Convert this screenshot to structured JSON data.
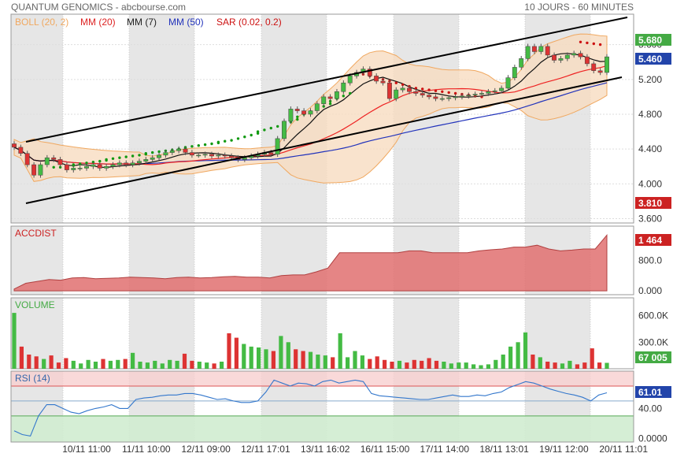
{
  "header": {
    "title": "QUANTUM GENOMICS - abcbourse.com",
    "period": "10 JOURS - 60 MINUTES"
  },
  "legend": {
    "boll": "BOLL (20, 2)",
    "mm20": "MM (20)",
    "mm7": "MM (7)",
    "mm50": "MM (50)",
    "sar": "SAR (0.02, 0.2)"
  },
  "colors": {
    "up": "#44bb44",
    "down": "#dd3333",
    "boll_fill": "#f7dcc0",
    "boll_line": "#f0a860",
    "mm20": "#ee2222",
    "mm7": "#111111",
    "mm50": "#2233bb",
    "sar_up": "#119911",
    "sar_down": "#cc1111",
    "accdist": "#e07070",
    "rsi": "#3377cc",
    "shade": "#e6e6e6"
  },
  "chart_data": [
    {
      "type": "candlestick",
      "name": "price",
      "ylim": [
        3.55,
        5.95
      ],
      "yticks": [
        "3.600",
        "4.000",
        "4.400",
        "4.800",
        "5.200",
        "5.600"
      ],
      "last_high_label": "5.680",
      "last_close_label": "5.460",
      "last_low_label": "3.810",
      "close": [
        4.42,
        4.35,
        4.22,
        4.1,
        4.22,
        4.3,
        4.28,
        4.22,
        4.16,
        4.18,
        4.18,
        4.2,
        4.22,
        4.18,
        4.2,
        4.22,
        4.24,
        4.22,
        4.24,
        4.26,
        4.28,
        4.3,
        4.33,
        4.36,
        4.38,
        4.4,
        4.36,
        4.33,
        4.33,
        4.34,
        4.32,
        4.33,
        4.32,
        4.3,
        4.28,
        4.3,
        4.32,
        4.34,
        4.36,
        4.34,
        4.52,
        4.72,
        4.86,
        4.84,
        4.8,
        4.84,
        4.92,
        5.0,
        4.98,
        5.06,
        5.16,
        5.24,
        5.28,
        5.32,
        5.24,
        5.18,
        5.16,
        4.98,
        5.08,
        5.1,
        5.06,
        5.04,
        5.02,
        5.0,
        4.98,
        4.98,
        4.99,
        5.0,
        5.01,
        5.02,
        5.03,
        5.04,
        5.06,
        5.07,
        5.1,
        5.22,
        5.34,
        5.44,
        5.58,
        5.52,
        5.58,
        5.48,
        5.42,
        5.44,
        5.48,
        5.5,
        5.46,
        5.38,
        5.3,
        5.28,
        5.46
      ],
      "sar_up": [
        4.19,
        4.19,
        4.2,
        4.21,
        4.22,
        4.23,
        4.24,
        4.25,
        4.26,
        4.27,
        4.28,
        4.29,
        4.3,
        4.31,
        4.32,
        4.33,
        4.34,
        4.35,
        4.36,
        4.37,
        4.38,
        4.39,
        4.4,
        4.41,
        4.42,
        4.43,
        4.44,
        4.45,
        4.46,
        4.47,
        4.48,
        4.49,
        4.5,
        4.52,
        4.54,
        4.56,
        4.58,
        4.6,
        4.62,
        4.64,
        4.66,
        4.68,
        4.71,
        4.74,
        4.77,
        4.8,
        4.83,
        4.86,
        4.89,
        4.92,
        4.95,
        4.98,
        5.01,
        5.04
      ],
      "sar_down": [
        5.27,
        5.26,
        5.24,
        5.22,
        5.2,
        5.18,
        5.16,
        5.14,
        5.12,
        5.1,
        5.09,
        5.08,
        5.07,
        5.06,
        5.05,
        5.04,
        5.03,
        5.02,
        5.01,
        5.0,
        5.63,
        5.62,
        5.61,
        5.6
      ]
    },
    {
      "type": "area",
      "name": "ACCDIST",
      "ylim": [
        -100,
        1700
      ],
      "yticks": [
        "800.0",
        "0.000"
      ],
      "last_label": "1 464",
      "values": [
        50,
        200,
        250,
        300,
        280,
        340,
        350,
        320,
        330,
        340,
        360,
        350,
        340,
        320,
        350,
        360,
        340,
        350,
        370,
        380,
        360,
        360,
        340,
        400,
        420,
        420,
        500,
        600,
        1000,
        1000,
        1000,
        1000,
        1000,
        1000,
        1050,
        1050,
        1000,
        1000,
        1000,
        1000,
        1050,
        1080,
        1100,
        1150,
        1150,
        1200,
        1100,
        1050,
        1070,
        1100,
        1100,
        1464
      ]
    },
    {
      "type": "bar",
      "name": "VOLUME",
      "ylim": [
        0,
        800000
      ],
      "yticks": [
        "600.0K",
        "300.0K"
      ],
      "last_label": "67 005",
      "values": [
        630000,
        250000,
        160000,
        140000,
        110000,
        150000,
        70000,
        120000,
        90000,
        60000,
        100000,
        80000,
        110000,
        90000,
        100000,
        110000,
        180000,
        80000,
        70000,
        90000,
        60000,
        100000,
        90000,
        170000,
        90000,
        80000,
        70000,
        60000,
        80000,
        400000,
        350000,
        280000,
        250000,
        240000,
        220000,
        200000,
        370000,
        300000,
        220000,
        200000,
        190000,
        160000,
        150000,
        130000,
        400000,
        130000,
        200000,
        150000,
        110000,
        140000,
        100000,
        80000,
        90000,
        70000,
        100000,
        90000,
        120000,
        90000,
        80000,
        60000,
        70000,
        70000,
        50000,
        40000,
        50000,
        100000,
        160000,
        250000,
        300000,
        410000,
        160000,
        130000,
        80000,
        70000,
        60000,
        90000,
        50000,
        70000,
        230000,
        70000,
        67005
      ]
    },
    {
      "type": "line",
      "name": "RSI",
      "subtitle": "(14)",
      "ylim": [
        -5,
        90
      ],
      "yticks": [
        "0.0000",
        "40.00"
      ],
      "last_label": "61.01",
      "zones": {
        "overbought": 70,
        "oversold": 30
      },
      "values": [
        10,
        5,
        3,
        30,
        45,
        45,
        40,
        35,
        33,
        37,
        40,
        42,
        45,
        40,
        40,
        52,
        54,
        55,
        57,
        58,
        58,
        60,
        60,
        58,
        55,
        52,
        53,
        50,
        48,
        48,
        50,
        62,
        78,
        74,
        70,
        74,
        73,
        70,
        76,
        78,
        74,
        76,
        78,
        76,
        60,
        57,
        56,
        55,
        54,
        53,
        52,
        52,
        54,
        56,
        58,
        56,
        56,
        58,
        57,
        60,
        62,
        68,
        72,
        76,
        74,
        70,
        66,
        63,
        60,
        58,
        55,
        50,
        58,
        61.01
      ]
    }
  ],
  "xaxis": {
    "labels": [
      "10/11 11:00",
      "11/11 10:00",
      "12/11 09:00",
      "12/11 17:01",
      "13/11 16:02",
      "16/11 15:00",
      "17/11 14:00",
      "18/11 13:01",
      "19/11 12:00",
      "20/11 11:01"
    ]
  }
}
